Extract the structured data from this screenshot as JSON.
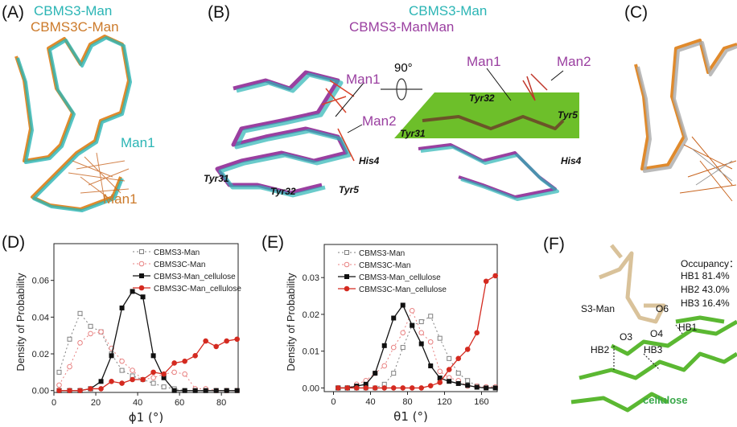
{
  "panels": {
    "A": {
      "label": "(A)",
      "legend": [
        "CBMS3-Man",
        "CBMS3C-Man"
      ],
      "annotations": [
        "Man1",
        "Man1"
      ]
    },
    "B": {
      "label": "(B)",
      "legend": [
        "CBMS3-Man",
        "CBMS3-ManMan"
      ],
      "rotation": "90°",
      "left_labels": {
        "man1": "Man1",
        "man2": "Man2",
        "his4": "His4",
        "tyr31": "Tyr31",
        "tyr32": "Tyr32",
        "tyr5": "Tyr5"
      },
      "right_labels": {
        "man1": "Man1",
        "man2": "Man2",
        "his4": "His4",
        "tyr31": "Tyr31",
        "tyr32": "Tyr32",
        "tyr5": "Tyr5"
      }
    },
    "C": {
      "label": "(C)"
    },
    "D": {
      "label": "(D)"
    },
    "E": {
      "label": "(E)"
    },
    "F": {
      "label": "(F)",
      "occupancy_title": "Occupancy：",
      "occupancy": [
        "HB1 81.4%",
        "HB2 43.0%",
        "HB3 16.4%"
      ],
      "labels": {
        "s3man": "S3-Man",
        "o6": "O6",
        "o4": "O4",
        "o3": "O3",
        "hb1": "HB1",
        "hb2": "HB2",
        "hb3": "HB3",
        "cellulose": "cellulose"
      }
    }
  },
  "colors": {
    "teal": "#2bb5b5",
    "orange": "#cc7a2a",
    "purple": "#9a3fa0",
    "green": "#5fbf2f",
    "black": "#111111",
    "red": "#d42a20",
    "gray": "#808080",
    "pink": "#e88080"
  },
  "chart_data": [
    {
      "type": "line",
      "panel": "D",
      "xlabel": "ϕ1 (°)",
      "ylabel": "Density of Probability",
      "xlim": [
        0,
        88
      ],
      "ylim": [
        -0.001,
        0.08
      ],
      "xticks": [
        0,
        20,
        40,
        60,
        80
      ],
      "yticks": [
        0.0,
        0.02,
        0.04,
        0.06
      ],
      "ytick_labels": [
        "0.00",
        "0.02",
        "0.04",
        "0.06"
      ],
      "legend_position": "top-right",
      "x": [
        2.5,
        7.5,
        12.5,
        17.5,
        22.5,
        27.5,
        32.5,
        37.5,
        42.5,
        47.5,
        52.5,
        57.5,
        62.5,
        67.5,
        72.5,
        77.5,
        82.5,
        87.5
      ],
      "series": [
        {
          "name": "CBMS3-Man",
          "style": "gray-dotted-open-square",
          "values": [
            0.01,
            0.028,
            0.042,
            0.035,
            0.032,
            0.02,
            0.011,
            0.008,
            0.006,
            0.004,
            0.002,
            0.001,
            0,
            0,
            0,
            0,
            0,
            0
          ]
        },
        {
          "name": "CBMS3C-Man",
          "style": "pink-dotted-open-circle",
          "values": [
            0.003,
            0.013,
            0.026,
            0.031,
            0.032,
            0.023,
            0.016,
            0.011,
            0.006,
            0.007,
            0.009,
            0.01,
            0.009,
            0.001,
            0.001,
            0,
            0,
            0
          ]
        },
        {
          "name": "CBMS3-Man_cellulose",
          "style": "black-solid-square",
          "values": [
            0,
            0,
            0,
            0.001,
            0.005,
            0.019,
            0.045,
            0.054,
            0.051,
            0.019,
            0.007,
            0,
            0,
            0,
            0,
            0,
            0,
            0
          ]
        },
        {
          "name": "CBMS3C-Man_cellulose",
          "style": "red-solid-circle",
          "values": [
            0,
            0,
            0,
            0.001,
            0.001,
            0.005,
            0.004,
            0.006,
            0.006,
            0.01,
            0.009,
            0.015,
            0.016,
            0.019,
            0.027,
            0.024,
            0.027,
            0.028
          ]
        }
      ]
    },
    {
      "type": "line",
      "panel": "E",
      "xlabel": "θ1 (°)",
      "ylabel": "Density of Probability",
      "xlim": [
        -10,
        177
      ],
      "ylim": [
        -0.001,
        0.039
      ],
      "xticks": [
        0,
        40,
        80,
        120,
        160
      ],
      "yticks": [
        0.0,
        0.01,
        0.02,
        0.03
      ],
      "ytick_labels": [
        "0.00",
        "0.01",
        "0.02",
        "0.03"
      ],
      "legend_position": "top-left",
      "x": [
        5,
        15,
        25,
        35,
        45,
        55,
        65,
        75,
        85,
        95,
        105,
        115,
        125,
        135,
        145,
        155,
        165,
        175
      ],
      "series": [
        {
          "name": "CBMS3-Man",
          "style": "gray-dotted-open-square",
          "values": [
            0,
            0,
            0,
            0,
            0,
            0.001,
            0.004,
            0.011,
            0.017,
            0.018,
            0.0195,
            0.0135,
            0.008,
            0.004,
            0.002,
            0.0005,
            0,
            0
          ]
        },
        {
          "name": "CBMS3C-Man",
          "style": "pink-dotted-open-circle",
          "values": [
            0,
            0,
            0.001,
            0.002,
            0.004,
            0.006,
            0.011,
            0.015,
            0.021,
            0.015,
            0.0125,
            0.0045,
            0.0028,
            0.002,
            0.0005,
            0.0005,
            0.0003,
            0.0003
          ]
        },
        {
          "name": "CBMS3-Man_cellulose",
          "style": "black-solid-square",
          "values": [
            0,
            0,
            0.0005,
            0.001,
            0.004,
            0.0115,
            0.019,
            0.0225,
            0.017,
            0.012,
            0.006,
            0.0027,
            0.0018,
            0.0012,
            0.0007,
            0.0002,
            0,
            0
          ]
        },
        {
          "name": "CBMS3C-Man_cellulose",
          "style": "red-solid-circle",
          "values": [
            0,
            0,
            0,
            0,
            0,
            0,
            0,
            0,
            0,
            0,
            0.0006,
            0.0015,
            0.005,
            0.008,
            0.0105,
            0.015,
            0.029,
            0.0305
          ]
        }
      ]
    }
  ]
}
